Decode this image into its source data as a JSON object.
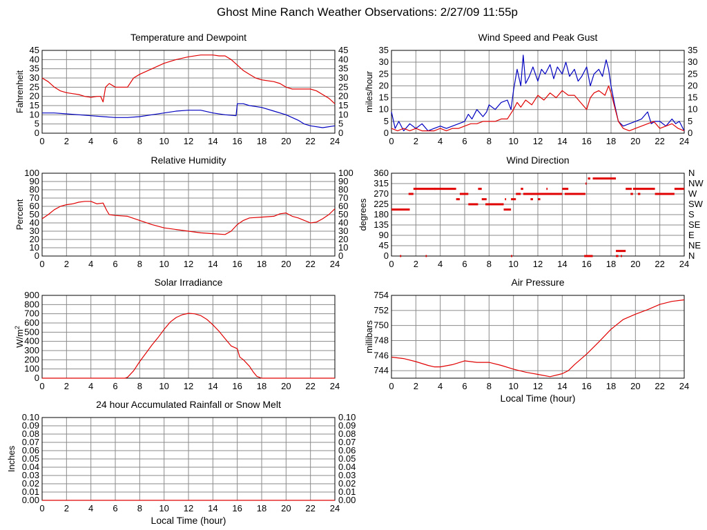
{
  "page": {
    "title": "Ghost Mine Ranch Weather Observations: 2/27/09 11:55p"
  },
  "chart_data": [
    {
      "id": "temperature",
      "type": "line",
      "title": "Temperature and Dewpoint",
      "xlabel": "",
      "ylabel": "Fahrenheit",
      "xlim": [
        0,
        24
      ],
      "ylim": [
        0,
        45
      ],
      "xticks": [
        0,
        2,
        4,
        6,
        8,
        10,
        12,
        14,
        16,
        18,
        20,
        22,
        24
      ],
      "yticks": [
        0,
        5,
        10,
        15,
        20,
        25,
        30,
        35,
        40,
        45
      ],
      "right_axis": true,
      "grid": true,
      "series": [
        {
          "color": "#e00000",
          "x": [
            0,
            0.5,
            1,
            1.5,
            2,
            2.5,
            3,
            3.5,
            4,
            4.5,
            4.8,
            5,
            5.2,
            5.5,
            6,
            6.5,
            7,
            7.5,
            8,
            9,
            10,
            11,
            12,
            13,
            14,
            14.5,
            15,
            15.5,
            16,
            16.5,
            17,
            17.5,
            18,
            19,
            19.5,
            20,
            20.5,
            21,
            21.5,
            22,
            22.5,
            23,
            23.5,
            24
          ],
          "y": [
            30,
            28,
            25,
            23,
            22,
            21.5,
            21,
            20,
            19.5,
            20,
            20,
            17,
            25,
            27,
            25,
            25,
            25,
            30,
            32,
            35,
            38,
            40,
            41.5,
            42.5,
            42.5,
            42,
            42,
            40,
            37,
            34,
            32,
            30,
            29,
            28,
            27,
            25,
            24,
            24,
            24,
            24,
            23,
            21,
            19,
            16
          ]
        },
        {
          "color": "#0000c0",
          "x": [
            0,
            1,
            2,
            3,
            4,
            5,
            6,
            7,
            8,
            9,
            10,
            11,
            12,
            13,
            14,
            15,
            15.9,
            16,
            16.5,
            17,
            18,
            19,
            20,
            21,
            21.5,
            22,
            23,
            24
          ],
          "y": [
            11,
            11,
            10.5,
            10,
            9.5,
            9,
            8.5,
            8.5,
            9,
            10,
            11,
            12,
            12.5,
            12.5,
            11,
            10,
            9.5,
            16,
            16,
            15,
            14,
            12,
            10,
            7,
            5,
            4,
            3,
            4
          ]
        }
      ]
    },
    {
      "id": "wind-speed",
      "type": "line",
      "title": "Wind Speed and Peak Gust",
      "xlabel": "",
      "ylabel": "miles/hour",
      "xlim": [
        0,
        24
      ],
      "ylim": [
        0,
        35
      ],
      "xticks": [
        0,
        2,
        4,
        6,
        8,
        10,
        12,
        14,
        16,
        18,
        20,
        22,
        24
      ],
      "yticks": [
        0,
        5,
        10,
        15,
        20,
        25,
        30,
        35
      ],
      "right_axis": true,
      "grid": true,
      "series": [
        {
          "color": "#0000c0",
          "x": [
            0,
            0.3,
            0.6,
            1,
            1.5,
            2,
            2.5,
            3,
            3.5,
            4,
            4.5,
            5,
            5.5,
            6,
            6.3,
            6.6,
            7,
            7.5,
            7.8,
            8,
            8.5,
            9,
            9.5,
            9.8,
            10,
            10.3,
            10.6,
            10.8,
            11,
            11.3,
            11.6,
            12,
            12.3,
            12.6,
            13,
            13.3,
            13.6,
            14,
            14.3,
            14.6,
            15,
            15.3,
            15.6,
            16,
            16.3,
            16.6,
            17,
            17.3,
            17.6,
            17.8,
            18,
            18.3,
            18.6,
            19,
            19.5,
            20,
            20.5,
            21,
            21.3,
            21.6,
            22,
            22.5,
            23,
            23.3,
            23.6,
            24
          ],
          "y": [
            9,
            2,
            5,
            1,
            4,
            2,
            4,
            1,
            2,
            3,
            2,
            3,
            4,
            5,
            8,
            6,
            10,
            7,
            9,
            12,
            10,
            13,
            14,
            10,
            18,
            27,
            20,
            33,
            21,
            24,
            28,
            22,
            27,
            25,
            29,
            23,
            28,
            25,
            30,
            24,
            27,
            22,
            24,
            28,
            20,
            25,
            27,
            24,
            31,
            27,
            20,
            12,
            5,
            3,
            4,
            5,
            6,
            9,
            4,
            5,
            5,
            3,
            6,
            4,
            5,
            1
          ]
        },
        {
          "color": "#e00000",
          "x": [
            0,
            0.5,
            1,
            1.5,
            2,
            2.5,
            3,
            3.5,
            4,
            4.5,
            5,
            5.5,
            6,
            6.5,
            7,
            7.5,
            8,
            8.5,
            9,
            9.5,
            10,
            10.3,
            10.6,
            11,
            11.5,
            12,
            12.5,
            13,
            13.5,
            14,
            14.5,
            15,
            15.5,
            16,
            16.3,
            16.6,
            17,
            17.5,
            17.8,
            18,
            18.3,
            18.6,
            19,
            19.5,
            20,
            20.5,
            21,
            21.5,
            22,
            22.5,
            23,
            23.5,
            24
          ],
          "y": [
            2,
            1,
            2,
            1,
            2,
            1,
            1,
            1,
            2,
            1,
            2,
            2,
            3,
            4,
            4,
            5,
            5,
            5,
            6,
            6,
            10,
            13,
            11,
            14,
            12,
            16,
            14,
            17,
            15,
            18,
            16,
            16,
            13,
            10,
            15,
            17,
            18,
            16,
            20,
            17,
            11,
            5,
            2,
            1,
            2,
            3,
            4,
            5,
            2,
            3,
            4,
            2,
            1
          ]
        }
      ]
    },
    {
      "id": "humidity",
      "type": "line",
      "title": "Relative Humidity",
      "xlabel": "",
      "ylabel": "Percent",
      "xlim": [
        0,
        24
      ],
      "ylim": [
        0,
        100
      ],
      "xticks": [
        0,
        2,
        4,
        6,
        8,
        10,
        12,
        14,
        16,
        18,
        20,
        22,
        24
      ],
      "yticks": [
        0,
        10,
        20,
        30,
        40,
        50,
        60,
        70,
        80,
        90,
        100
      ],
      "right_axis": true,
      "grid": true,
      "series": [
        {
          "color": "#e00000",
          "x": [
            0,
            0.5,
            1,
            1.5,
            2,
            2.5,
            3,
            3.5,
            4,
            4.5,
            5,
            5.3,
            5.5,
            6,
            7,
            8,
            9,
            10,
            11,
            12,
            13,
            14,
            15,
            15.5,
            16,
            16.5,
            17,
            18,
            19,
            19.5,
            20,
            20.5,
            21,
            21.5,
            22,
            22.5,
            23,
            23.5,
            24
          ],
          "y": [
            45,
            50,
            56,
            60,
            62,
            63,
            65,
            66,
            66,
            63,
            64,
            55,
            50,
            49,
            48,
            43,
            38,
            34,
            32,
            30,
            28,
            27,
            26,
            30,
            38,
            43,
            46,
            47,
            48,
            51,
            52,
            48,
            46,
            43,
            40,
            41,
            45,
            50,
            57
          ]
        }
      ]
    },
    {
      "id": "wind-direction",
      "type": "scatter",
      "title": "Wind Direction",
      "xlabel": "",
      "ylabel": "degrees",
      "xlim": [
        0,
        24
      ],
      "ylim": [
        0,
        360
      ],
      "xticks": [
        0,
        2,
        4,
        6,
        8,
        10,
        12,
        14,
        16,
        18,
        20,
        22,
        24
      ],
      "yticks": [
        0,
        45,
        90,
        135,
        180,
        225,
        270,
        315,
        360
      ],
      "right_labels": [
        "N",
        "NE",
        "E",
        "SE",
        "S",
        "SW",
        "W",
        "NW",
        "N"
      ],
      "grid": true,
      "segments": [
        [
          0,
          1.5,
          202
        ],
        [
          0.7,
          0.8,
          0
        ],
        [
          1.4,
          1.8,
          270
        ],
        [
          1.8,
          3.6,
          292
        ],
        [
          2.8,
          2.9,
          0
        ],
        [
          3.5,
          5.3,
          292
        ],
        [
          5.3,
          5.6,
          247
        ],
        [
          5.6,
          6.3,
          270
        ],
        [
          6.3,
          7.1,
          225
        ],
        [
          7.1,
          7.4,
          292
        ],
        [
          7.4,
          7.8,
          247
        ],
        [
          7.7,
          9.2,
          225
        ],
        [
          9.2,
          9.8,
          202
        ],
        [
          9.3,
          9.4,
          247
        ],
        [
          9.8,
          10.2,
          247
        ],
        [
          9.8,
          9.9,
          0
        ],
        [
          10.2,
          10.6,
          270
        ],
        [
          10.6,
          10.8,
          292
        ],
        [
          10.8,
          14.0,
          270
        ],
        [
          11.4,
          11.6,
          247
        ],
        [
          12.0,
          12.2,
          247
        ],
        [
          12.7,
          12.8,
          292
        ],
        [
          14.0,
          14.5,
          292
        ],
        [
          14.2,
          15.9,
          270
        ],
        [
          15.8,
          16.5,
          0
        ],
        [
          15.9,
          16.0,
          315
        ],
        [
          16.1,
          16.3,
          337
        ],
        [
          16.5,
          18.4,
          337
        ],
        [
          18.4,
          19.2,
          22
        ],
        [
          18.4,
          18.6,
          0
        ],
        [
          18.8,
          18.9,
          0
        ],
        [
          19.2,
          19.7,
          292
        ],
        [
          19.6,
          19.8,
          270
        ],
        [
          19.8,
          21.6,
          292
        ],
        [
          20.2,
          20.4,
          270
        ],
        [
          21.6,
          23.2,
          270
        ],
        [
          23.2,
          24,
          292
        ]
      ]
    },
    {
      "id": "solar",
      "type": "line",
      "title": "Solar Irradiance",
      "xlabel": "",
      "ylabel": "W/m",
      "ylabel_sup": "2",
      "xlim": [
        0,
        24
      ],
      "ylim": [
        0,
        900
      ],
      "xticks": [
        0,
        2,
        4,
        6,
        8,
        10,
        12,
        14,
        16,
        18,
        20,
        22,
        24
      ],
      "yticks": [
        0,
        100,
        200,
        300,
        400,
        500,
        600,
        700,
        800,
        900
      ],
      "right_axis": false,
      "grid": true,
      "series": [
        {
          "color": "#e00000",
          "x": [
            0,
            6.8,
            7,
            7.5,
            8,
            8.5,
            9,
            9.5,
            10,
            10.5,
            11,
            11.5,
            12,
            12.5,
            13,
            13.5,
            14,
            14.5,
            15,
            15.5,
            16,
            16.2,
            16.5,
            17,
            17.3,
            17.6,
            18,
            24
          ],
          "y": [
            0,
            0,
            10,
            80,
            180,
            270,
            360,
            440,
            530,
            610,
            660,
            690,
            705,
            700,
            680,
            640,
            580,
            510,
            430,
            350,
            320,
            230,
            200,
            130,
            70,
            20,
            0,
            0
          ]
        }
      ]
    },
    {
      "id": "pressure",
      "type": "line",
      "title": "Air Pressure",
      "xlabel": "Local Time (hour)",
      "ylabel": "millibars",
      "xlim": [
        0,
        24
      ],
      "ylim": [
        743,
        754
      ],
      "xticks": [
        0,
        2,
        4,
        6,
        8,
        10,
        12,
        14,
        16,
        18,
        20,
        22,
        24
      ],
      "yticks": [
        744,
        746,
        748,
        750,
        752,
        754
      ],
      "right_axis": false,
      "grid": true,
      "series": [
        {
          "color": "#e00000",
          "x": [
            0,
            1,
            2,
            3,
            3.5,
            4,
            5,
            6,
            7,
            8,
            9,
            10,
            11,
            12,
            13,
            14,
            14.5,
            15,
            16,
            17,
            18,
            19,
            20,
            21,
            22,
            23,
            24
          ],
          "y": [
            745.8,
            745.6,
            745.2,
            744.7,
            744.5,
            744.5,
            744.8,
            745.3,
            745.1,
            745.1,
            744.7,
            744.2,
            743.8,
            743.5,
            743.2,
            743.6,
            744,
            744.8,
            746.2,
            747.8,
            749.5,
            750.8,
            751.5,
            752.1,
            752.8,
            753.2,
            753.4
          ]
        }
      ]
    },
    {
      "id": "rainfall",
      "type": "line",
      "title": "24 hour Accumulated Rainfall or Snow Melt",
      "xlabel": "Local Time (hour)",
      "ylabel": "Inches",
      "xlim": [
        0,
        24
      ],
      "ylim": [
        0,
        0.1
      ],
      "xticks": [
        0,
        2,
        4,
        6,
        8,
        10,
        12,
        14,
        16,
        18,
        20,
        22,
        24
      ],
      "yticks": [
        0.0,
        0.01,
        0.02,
        0.03,
        0.04,
        0.05,
        0.06,
        0.07,
        0.08,
        0.09,
        0.1
      ],
      "ytick_format": 2,
      "right_axis": true,
      "grid": true,
      "series": [
        {
          "color": "#e00000",
          "x": [
            0,
            24
          ],
          "y": [
            0,
            0
          ]
        }
      ]
    }
  ]
}
